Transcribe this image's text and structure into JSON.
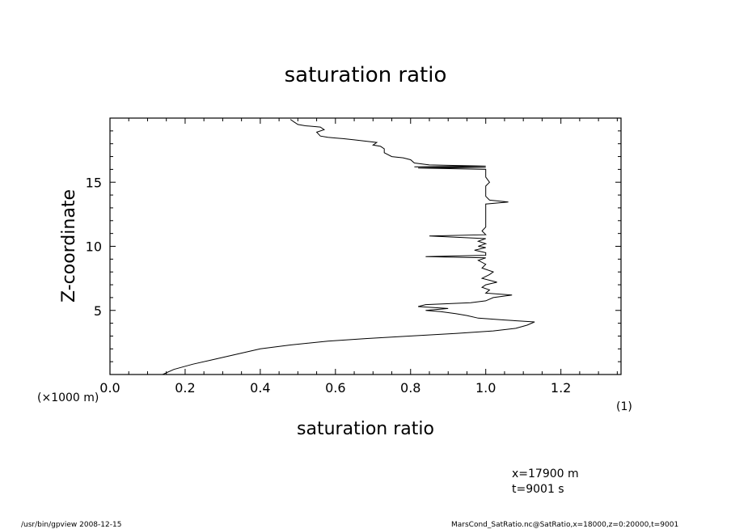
{
  "chart_data": {
    "type": "line",
    "title": "saturation ratio",
    "xlabel": "saturation ratio",
    "ylabel": "Z-coordinate",
    "x_unit": "(1)",
    "y_unit": "(×1000 m)",
    "xlim": [
      0,
      1.36
    ],
    "ylim": [
      0,
      20
    ],
    "xticks": [
      0.0,
      0.2,
      0.4,
      0.6,
      0.8,
      1.0,
      1.2
    ],
    "xtick_labels": [
      "0.0",
      "0.2",
      "0.4",
      "0.6",
      "0.8",
      "1.0",
      "1.2"
    ],
    "yticks": [
      5,
      10,
      15
    ],
    "ytick_labels": [
      "5",
      "10",
      "15"
    ],
    "grid": false,
    "series": [
      {
        "points": [
          [
            0.14,
            0.0
          ],
          [
            0.17,
            0.4
          ],
          [
            0.22,
            0.8
          ],
          [
            0.28,
            1.2
          ],
          [
            0.34,
            1.6
          ],
          [
            0.4,
            2.0
          ],
          [
            0.48,
            2.3
          ],
          [
            0.58,
            2.6
          ],
          [
            0.68,
            2.8
          ],
          [
            0.8,
            3.0
          ],
          [
            0.92,
            3.2
          ],
          [
            1.02,
            3.4
          ],
          [
            1.08,
            3.6
          ],
          [
            1.11,
            3.85
          ],
          [
            1.13,
            4.1
          ],
          [
            1.05,
            4.25
          ],
          [
            0.98,
            4.4
          ],
          [
            0.95,
            4.6
          ],
          [
            0.92,
            4.75
          ],
          [
            0.88,
            4.9
          ],
          [
            0.84,
            5.0
          ],
          [
            0.9,
            5.15
          ],
          [
            0.82,
            5.3
          ],
          [
            0.84,
            5.45
          ],
          [
            0.96,
            5.6
          ],
          [
            1.0,
            5.75
          ],
          [
            1.02,
            6.0
          ],
          [
            1.07,
            6.2
          ],
          [
            1.0,
            6.35
          ],
          [
            1.01,
            6.6
          ],
          [
            0.99,
            6.8
          ],
          [
            1.0,
            7.0
          ],
          [
            1.03,
            7.2
          ],
          [
            0.99,
            7.5
          ],
          [
            1.01,
            7.8
          ],
          [
            1.02,
            8.0
          ],
          [
            0.99,
            8.3
          ],
          [
            1.0,
            8.6
          ],
          [
            0.98,
            8.9
          ],
          [
            1.0,
            9.1
          ],
          [
            0.84,
            9.2
          ],
          [
            1.0,
            9.3
          ],
          [
            1.0,
            9.5
          ],
          [
            0.97,
            9.7
          ],
          [
            1.0,
            9.9
          ],
          [
            0.98,
            10.0
          ],
          [
            1.0,
            10.2
          ],
          [
            0.98,
            10.4
          ],
          [
            1.0,
            10.6
          ],
          [
            0.85,
            10.8
          ],
          [
            1.0,
            10.9
          ],
          [
            0.99,
            11.2
          ],
          [
            1.0,
            11.5
          ],
          [
            1.0,
            12.0
          ],
          [
            1.0,
            12.5
          ],
          [
            1.0,
            13.0
          ],
          [
            1.0,
            13.3
          ],
          [
            1.06,
            13.45
          ],
          [
            1.01,
            13.6
          ],
          [
            1.0,
            13.9
          ],
          [
            1.0,
            14.3
          ],
          [
            1.0,
            14.7
          ],
          [
            1.01,
            15.0
          ],
          [
            1.0,
            15.4
          ],
          [
            1.0,
            15.8
          ],
          [
            1.0,
            16.0
          ],
          [
            0.82,
            16.1
          ],
          [
            1.0,
            16.15
          ],
          [
            0.81,
            16.2
          ],
          [
            1.0,
            16.25
          ],
          [
            0.85,
            16.35
          ],
          [
            0.81,
            16.5
          ],
          [
            0.8,
            16.75
          ],
          [
            0.78,
            16.9
          ],
          [
            0.75,
            17.0
          ],
          [
            0.73,
            17.3
          ],
          [
            0.73,
            17.6
          ],
          [
            0.72,
            17.8
          ],
          [
            0.7,
            17.9
          ],
          [
            0.71,
            18.1
          ],
          [
            0.68,
            18.2
          ],
          [
            0.65,
            18.3
          ],
          [
            0.62,
            18.4
          ],
          [
            0.6,
            18.45
          ],
          [
            0.58,
            18.5
          ],
          [
            0.56,
            18.6
          ],
          [
            0.55,
            18.9
          ],
          [
            0.57,
            19.1
          ],
          [
            0.56,
            19.3
          ],
          [
            0.52,
            19.4
          ],
          [
            0.5,
            19.5
          ],
          [
            0.49,
            19.7
          ],
          [
            0.48,
            19.9
          ]
        ]
      }
    ]
  },
  "info": {
    "line1": "x=17900  m",
    "line2": "t=9001  s"
  },
  "footer": {
    "left": "/usr/bin/gpview   2008-12-15",
    "right": "MarsCond_SatRatio.nc@SatRatio,x=18000,z=0:20000,t=9001"
  }
}
